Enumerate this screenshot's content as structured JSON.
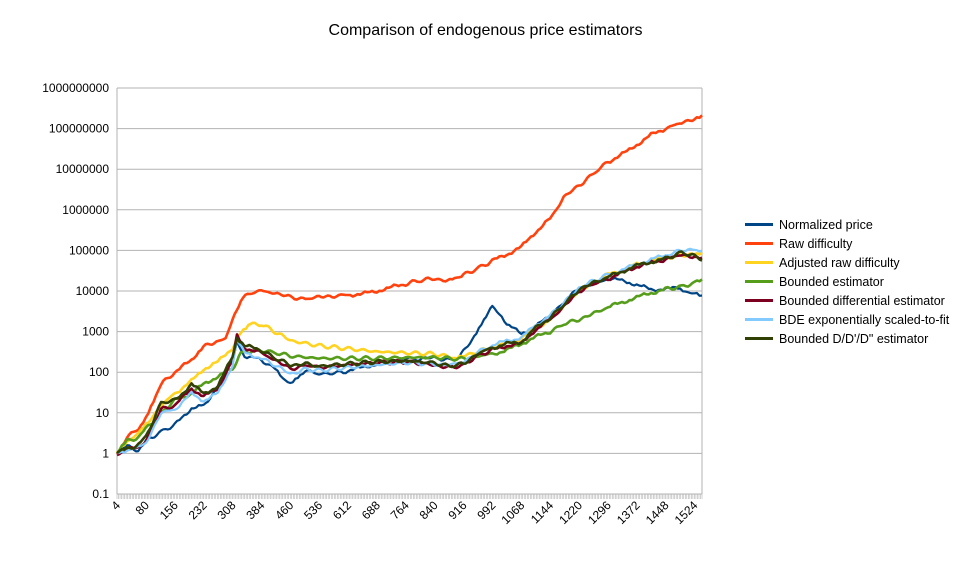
{
  "chart_data": {
    "type": "line",
    "title": "Comparison of endogenous price estimators",
    "xlabel": "",
    "ylabel": "",
    "y_scale": "log",
    "ylim": [
      0.1,
      1000000000
    ],
    "y_ticks": [
      "0.1",
      "1",
      "10",
      "100",
      "1000",
      "10000",
      "100000",
      "1000000",
      "10000000",
      "100000000",
      "1000000000"
    ],
    "x_ticks": [
      "4",
      "80",
      "156",
      "232",
      "308",
      "384",
      "460",
      "536",
      "612",
      "688",
      "764",
      "840",
      "916",
      "992",
      "1068",
      "1144",
      "1220",
      "1296",
      "1372",
      "1448",
      "1524"
    ],
    "xlim": [
      4,
      1544
    ],
    "grid": true,
    "legend_position": "right",
    "series": [
      {
        "name": "Normalized price",
        "color": "#004586",
        "x": [
          4,
          30,
          60,
          80,
          120,
          156,
          200,
          232,
          260,
          308,
          320,
          340,
          384,
          420,
          440,
          460,
          480,
          500,
          536,
          600,
          612,
          650,
          688,
          720,
          764,
          800,
          840,
          880,
          900,
          916,
          950,
          970,
          992,
          1010,
          1030,
          1068,
          1100,
          1144,
          1180,
          1220,
          1260,
          1296,
          1340,
          1372,
          1410,
          1448,
          1480,
          1500,
          1524,
          1544
        ],
        "values": [
          1,
          1.5,
          1.2,
          2,
          3.5,
          5,
          13,
          15,
          30,
          180,
          600,
          250,
          200,
          120,
          70,
          55,
          80,
          110,
          90,
          100,
          110,
          130,
          160,
          190,
          220,
          210,
          230,
          200,
          220,
          320,
          900,
          2000,
          4000,
          3000,
          1500,
          900,
          1200,
          2500,
          5000,
          12000,
          15000,
          20000,
          18000,
          14000,
          11000,
          11000,
          12000,
          10000,
          8500,
          7000
        ]
      },
      {
        "name": "Raw difficulty",
        "color": "#ff420e",
        "x": [
          4,
          30,
          60,
          80,
          100,
          120,
          156,
          200,
          232,
          260,
          290,
          308,
          330,
          360,
          384,
          420,
          460,
          500,
          536,
          570,
          612,
          650,
          688,
          720,
          764,
          800,
          840,
          880,
          900,
          916,
          950,
          992,
          1030,
          1068,
          1100,
          1144,
          1180,
          1220,
          1260,
          1296,
          1340,
          1372,
          1410,
          1448,
          1490,
          1524,
          1544
        ],
        "values": [
          1,
          2.5,
          4,
          8,
          20,
          50,
          100,
          200,
          450,
          500,
          700,
          2000,
          6000,
          9500,
          10000,
          9000,
          7000,
          6500,
          7000,
          7500,
          8000,
          8500,
          10000,
          12000,
          15000,
          18000,
          20000,
          18000,
          20000,
          25000,
          35000,
          55000,
          80000,
          120000,
          250000,
          600000,
          2000000,
          4000000,
          8000000,
          15000000,
          25000000,
          40000000,
          70000000,
          100000000,
          140000000,
          180000000,
          200000000
        ]
      },
      {
        "name": "Adjusted raw difficulty",
        "color": "#ffd320",
        "x": [
          4,
          30,
          60,
          80,
          120,
          156,
          200,
          232,
          270,
          308,
          330,
          350,
          384,
          420,
          460,
          536,
          612,
          688,
          764,
          840,
          900,
          916,
          950,
          992,
          1030,
          1068,
          1100,
          1144,
          1180,
          1220,
          1260,
          1296,
          1340,
          1372,
          1410,
          1448,
          1490,
          1524,
          1544
        ],
        "values": [
          1,
          2,
          3,
          5,
          15,
          30,
          60,
          120,
          180,
          400,
          1000,
          1500,
          1500,
          1000,
          600,
          450,
          380,
          320,
          300,
          280,
          220,
          250,
          320,
          400,
          500,
          700,
          1100,
          2000,
          4500,
          10000,
          17000,
          25000,
          35000,
          45000,
          55000,
          65000,
          75000,
          85000,
          90000
        ]
      },
      {
        "name": "Bounded estimator",
        "color": "#579d1c",
        "x": [
          4,
          30,
          60,
          80,
          120,
          156,
          200,
          232,
          270,
          308,
          330,
          384,
          420,
          460,
          536,
          612,
          688,
          764,
          840,
          916,
          950,
          992,
          1030,
          1068,
          1100,
          1144,
          1180,
          1220,
          1260,
          1296,
          1340,
          1372,
          1410,
          1448,
          1490,
          1524,
          1544
        ],
        "values": [
          1,
          2,
          2.5,
          4,
          10,
          20,
          30,
          50,
          80,
          120,
          300,
          350,
          300,
          250,
          220,
          220,
          220,
          230,
          230,
          210,
          250,
          280,
          350,
          500,
          700,
          1000,
          1500,
          2000,
          2800,
          4000,
          5500,
          7000,
          9000,
          11000,
          13000,
          16000,
          18000
        ]
      },
      {
        "name": "Bounded differential estimator",
        "color": "#7e0021",
        "x": [
          4,
          30,
          60,
          80,
          120,
          156,
          200,
          232,
          270,
          308,
          320,
          340,
          384,
          420,
          460,
          500,
          536,
          612,
          688,
          764,
          840,
          880,
          916,
          950,
          992,
          1030,
          1068,
          1100,
          1144,
          1180,
          1220,
          1260,
          1296,
          1340,
          1372,
          1410,
          1448,
          1490,
          1524,
          1544
        ],
        "values": [
          1,
          1.2,
          1.5,
          2,
          12,
          15,
          40,
          25,
          40,
          200,
          800,
          400,
          300,
          200,
          120,
          150,
          130,
          150,
          170,
          180,
          150,
          130,
          150,
          250,
          350,
          450,
          500,
          1000,
          2000,
          4000,
          10000,
          15000,
          20000,
          30000,
          40000,
          50000,
          60000,
          80000,
          70000,
          60000
        ]
      },
      {
        "name": "BDE exponentially scaled-to-fit",
        "color": "#83caff",
        "x": [
          4,
          30,
          60,
          80,
          120,
          156,
          200,
          232,
          270,
          308,
          320,
          340,
          384,
          420,
          460,
          500,
          536,
          612,
          688,
          764,
          840,
          880,
          916,
          950,
          992,
          1030,
          1068,
          1100,
          1144,
          1180,
          1220,
          1260,
          1296,
          1340,
          1372,
          1410,
          1448,
          1490,
          1524,
          1544
        ],
        "values": [
          1,
          1.2,
          1.4,
          1.8,
          10,
          12,
          30,
          20,
          30,
          150,
          600,
          300,
          220,
          150,
          90,
          120,
          110,
          130,
          150,
          170,
          160,
          150,
          180,
          300,
          450,
          600,
          700,
          1300,
          2500,
          5000,
          12000,
          18000,
          25000,
          35000,
          45000,
          60000,
          75000,
          100000,
          110000,
          100000
        ]
      },
      {
        "name": "Bounded D/D'/D\" estimator",
        "color": "#314004",
        "x": [
          4,
          30,
          60,
          80,
          120,
          156,
          200,
          232,
          270,
          308,
          320,
          340,
          384,
          420,
          460,
          500,
          536,
          612,
          688,
          764,
          840,
          880,
          916,
          950,
          992,
          1030,
          1068,
          1100,
          1144,
          1180,
          1220,
          1260,
          1296,
          1340,
          1372,
          1410,
          1448,
          1490,
          1524,
          1544
        ],
        "values": [
          1,
          1.3,
          1.6,
          2.5,
          18,
          20,
          50,
          30,
          45,
          250,
          700,
          450,
          350,
          220,
          150,
          160,
          140,
          160,
          180,
          190,
          170,
          140,
          160,
          280,
          400,
          500,
          550,
          1100,
          2200,
          4500,
          11000,
          16000,
          22000,
          32000,
          42000,
          52000,
          62000,
          90000,
          75000,
          55000
        ]
      }
    ]
  }
}
